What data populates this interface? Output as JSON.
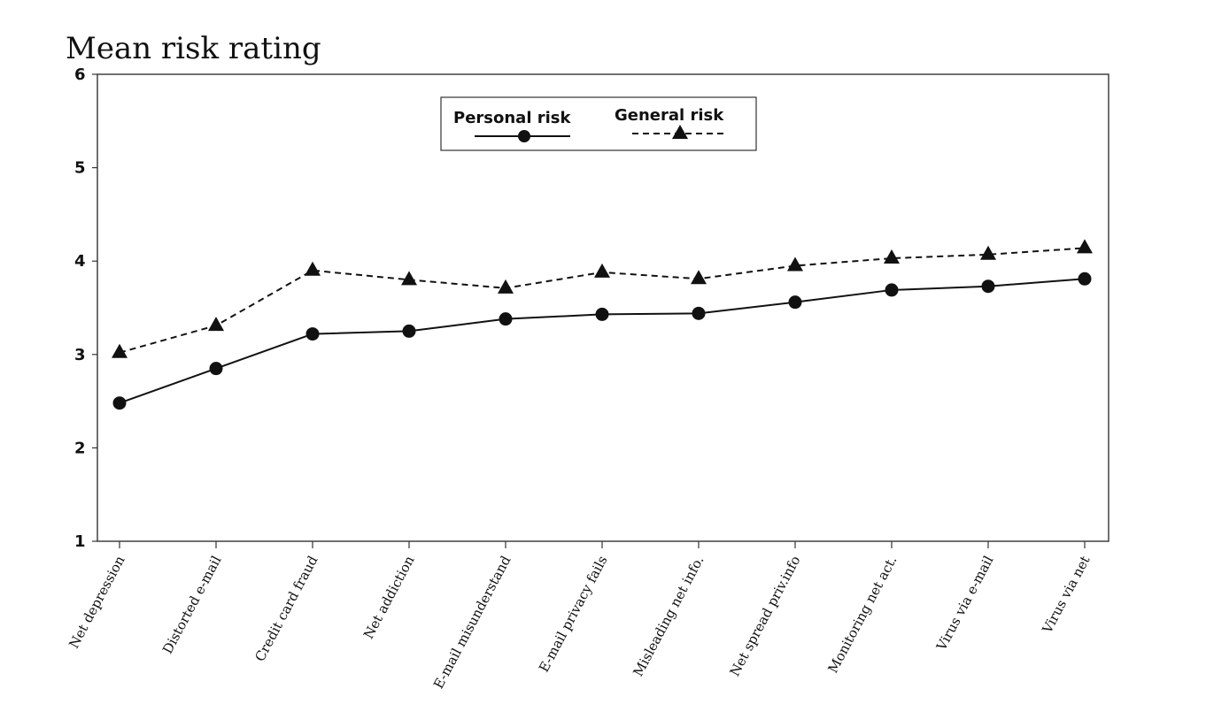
{
  "chart_data": {
    "type": "line",
    "title": "Mean risk rating",
    "xlabel": "",
    "ylabel": "",
    "ylim": [
      1,
      6
    ],
    "yticks": [
      "1",
      "2",
      "3",
      "4",
      "5",
      "6"
    ],
    "categories": [
      "Net depression",
      "Distorted e-mail",
      "Credit card fraud",
      "Net addiction",
      "E-mail misunderstand",
      "E-mail privacy fails",
      "Misleading net info.",
      "Net spread priv.info",
      "Monitoring net act.",
      "Virus via e-mail",
      "Virus via net"
    ],
    "series": [
      {
        "name": "Personal risk",
        "marker": "circle",
        "line": "solid",
        "values": [
          2.48,
          2.85,
          3.22,
          3.25,
          3.38,
          3.43,
          3.44,
          3.56,
          3.69,
          3.73,
          3.81
        ]
      },
      {
        "name": "General risk",
        "marker": "triangle",
        "line": "dashed",
        "values": [
          3.02,
          3.31,
          3.9,
          3.8,
          3.71,
          3.88,
          3.81,
          3.95,
          4.03,
          4.07,
          4.14
        ]
      }
    ],
    "grid": false,
    "legend_position": "top-center",
    "colors": {
      "line": "#111111",
      "frame": "#333333"
    }
  }
}
